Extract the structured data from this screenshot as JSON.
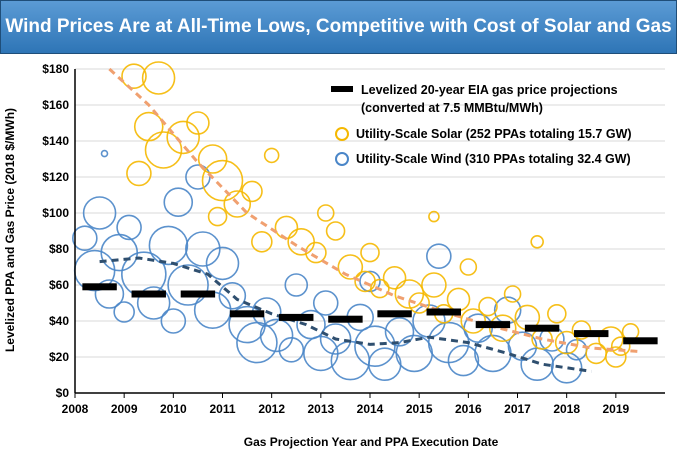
{
  "chart_data": {
    "type": "scatter",
    "title": "Wind Prices Are at All-Time Lows, Competitive with Cost of Solar and Gas",
    "xlabel": "Gas Projection Year and PPA Execution Date",
    "ylabel": "Levelized PPA and Gas Price (2018 $/MWh)",
    "xlim": [
      2008,
      2020
    ],
    "ylim": [
      0,
      180
    ],
    "x_ticks": [
      "2008",
      "2009",
      "2010",
      "2011",
      "2012",
      "2013",
      "2014",
      "2015",
      "2016",
      "2017",
      "2018",
      "2019"
    ],
    "y_ticks": [
      "$0",
      "$20",
      "$40",
      "$60",
      "$80",
      "$100",
      "$120",
      "$140",
      "$160",
      "$180"
    ],
    "legend": {
      "placement": "top-right",
      "gas_line1": "Levelized 20-year EIA gas price projections",
      "gas_line2": "(converted at 7.5 MMBtu/MWh)",
      "solar": "Utility-Scale Solar (252 PPAs totaling 15.7 GW)",
      "wind": "Utility-Scale Wind (310 PPAs totaling 32.4 GW)"
    },
    "colors": {
      "solar": "#f5b800",
      "wind": "#4a86c8",
      "solar_trend": "#f0a070",
      "wind_trend": "#2f4f6f",
      "gas": "#000000"
    },
    "gas_projections": [
      {
        "x": 2008.5,
        "y": 59
      },
      {
        "x": 2009.5,
        "y": 55
      },
      {
        "x": 2010.5,
        "y": 55
      },
      {
        "x": 2011.5,
        "y": 44
      },
      {
        "x": 2012.5,
        "y": 42
      },
      {
        "x": 2013.5,
        "y": 41
      },
      {
        "x": 2014.5,
        "y": 44
      },
      {
        "x": 2015.5,
        "y": 45
      },
      {
        "x": 2016.5,
        "y": 38
      },
      {
        "x": 2017.5,
        "y": 36
      },
      {
        "x": 2018.5,
        "y": 33
      },
      {
        "x": 2019.5,
        "y": 29
      }
    ],
    "solar_trend": [
      {
        "x": 2008.7,
        "y": 180
      },
      {
        "x": 2009.5,
        "y": 160
      },
      {
        "x": 2010.5,
        "y": 128
      },
      {
        "x": 2011.5,
        "y": 100
      },
      {
        "x": 2012.5,
        "y": 82
      },
      {
        "x": 2013.5,
        "y": 66
      },
      {
        "x": 2014.5,
        "y": 54
      },
      {
        "x": 2015.5,
        "y": 45
      },
      {
        "x": 2016.5,
        "y": 37
      },
      {
        "x": 2017.5,
        "y": 30
      },
      {
        "x": 2018.5,
        "y": 25
      },
      {
        "x": 2019.5,
        "y": 23
      }
    ],
    "wind_trend": [
      {
        "x": 2008.5,
        "y": 73
      },
      {
        "x": 2009.3,
        "y": 75
      },
      {
        "x": 2010.0,
        "y": 72
      },
      {
        "x": 2010.7,
        "y": 66
      },
      {
        "x": 2011.3,
        "y": 52
      },
      {
        "x": 2012.0,
        "y": 44
      },
      {
        "x": 2012.7,
        "y": 38
      },
      {
        "x": 2013.3,
        "y": 30
      },
      {
        "x": 2014.0,
        "y": 27
      },
      {
        "x": 2014.6,
        "y": 28
      },
      {
        "x": 2015.2,
        "y": 31
      },
      {
        "x": 2016.0,
        "y": 28
      },
      {
        "x": 2016.8,
        "y": 22
      },
      {
        "x": 2017.5,
        "y": 16
      },
      {
        "x": 2018.5,
        "y": 12
      }
    ],
    "solar_points": [
      {
        "x": 2009.7,
        "y": 175,
        "s": 16
      },
      {
        "x": 2009.2,
        "y": 176,
        "s": 12
      },
      {
        "x": 2009.5,
        "y": 148,
        "s": 14
      },
      {
        "x": 2009.8,
        "y": 135,
        "s": 18
      },
      {
        "x": 2009.3,
        "y": 122,
        "s": 12
      },
      {
        "x": 2010.2,
        "y": 142,
        "s": 16
      },
      {
        "x": 2010.5,
        "y": 150,
        "s": 11
      },
      {
        "x": 2010.8,
        "y": 130,
        "s": 14
      },
      {
        "x": 2011.0,
        "y": 118,
        "s": 20
      },
      {
        "x": 2011.3,
        "y": 105,
        "s": 13
      },
      {
        "x": 2011.6,
        "y": 112,
        "s": 10
      },
      {
        "x": 2010.9,
        "y": 98,
        "s": 9
      },
      {
        "x": 2012.3,
        "y": 92,
        "s": 11
      },
      {
        "x": 2012.6,
        "y": 84,
        "s": 13
      },
      {
        "x": 2012.9,
        "y": 78,
        "s": 10
      },
      {
        "x": 2013.3,
        "y": 90,
        "s": 9
      },
      {
        "x": 2013.6,
        "y": 70,
        "s": 12
      },
      {
        "x": 2013.9,
        "y": 62,
        "s": 10
      },
      {
        "x": 2014.2,
        "y": 58,
        "s": 9
      },
      {
        "x": 2014.5,
        "y": 64,
        "s": 11
      },
      {
        "x": 2014.8,
        "y": 55,
        "s": 14
      },
      {
        "x": 2015.0,
        "y": 50,
        "s": 10
      },
      {
        "x": 2015.3,
        "y": 60,
        "s": 12
      },
      {
        "x": 2015.5,
        "y": 44,
        "s": 9
      },
      {
        "x": 2015.8,
        "y": 52,
        "s": 11
      },
      {
        "x": 2016.1,
        "y": 40,
        "s": 12
      },
      {
        "x": 2016.4,
        "y": 48,
        "s": 9
      },
      {
        "x": 2016.7,
        "y": 36,
        "s": 13
      },
      {
        "x": 2016.9,
        "y": 55,
        "s": 8
      },
      {
        "x": 2017.2,
        "y": 42,
        "s": 12
      },
      {
        "x": 2017.4,
        "y": 84,
        "s": 6
      },
      {
        "x": 2017.5,
        "y": 30,
        "s": 10
      },
      {
        "x": 2017.8,
        "y": 44,
        "s": 9
      },
      {
        "x": 2018.0,
        "y": 28,
        "s": 11
      },
      {
        "x": 2018.3,
        "y": 35,
        "s": 9
      },
      {
        "x": 2018.6,
        "y": 22,
        "s": 10
      },
      {
        "x": 2018.9,
        "y": 30,
        "s": 12
      },
      {
        "x": 2019.1,
        "y": 26,
        "s": 9
      },
      {
        "x": 2019.3,
        "y": 34,
        "s": 8
      },
      {
        "x": 2019.0,
        "y": 20,
        "s": 10
      },
      {
        "x": 2012.0,
        "y": 132,
        "s": 7
      },
      {
        "x": 2015.3,
        "y": 98,
        "s": 5
      },
      {
        "x": 2013.1,
        "y": 100,
        "s": 8
      },
      {
        "x": 2014.0,
        "y": 78,
        "s": 9
      },
      {
        "x": 2011.8,
        "y": 84,
        "s": 10
      },
      {
        "x": 2016.0,
        "y": 70,
        "s": 8
      }
    ],
    "wind_points": [
      {
        "x": 2008.2,
        "y": 86,
        "s": 12
      },
      {
        "x": 2008.5,
        "y": 100,
        "s": 16
      },
      {
        "x": 2008.4,
        "y": 68,
        "s": 20
      },
      {
        "x": 2008.7,
        "y": 55,
        "s": 14
      },
      {
        "x": 2008.9,
        "y": 78,
        "s": 18
      },
      {
        "x": 2009.1,
        "y": 92,
        "s": 12
      },
      {
        "x": 2009.4,
        "y": 66,
        "s": 22
      },
      {
        "x": 2009.6,
        "y": 50,
        "s": 16
      },
      {
        "x": 2009.9,
        "y": 82,
        "s": 19
      },
      {
        "x": 2010.1,
        "y": 106,
        "s": 14
      },
      {
        "x": 2010.3,
        "y": 60,
        "s": 20
      },
      {
        "x": 2010.5,
        "y": 120,
        "s": 12
      },
      {
        "x": 2010.6,
        "y": 80,
        "s": 17
      },
      {
        "x": 2010.8,
        "y": 46,
        "s": 18
      },
      {
        "x": 2011.0,
        "y": 72,
        "s": 16
      },
      {
        "x": 2011.2,
        "y": 54,
        "s": 13
      },
      {
        "x": 2011.5,
        "y": 38,
        "s": 18
      },
      {
        "x": 2011.7,
        "y": 28,
        "s": 20
      },
      {
        "x": 2011.9,
        "y": 45,
        "s": 14
      },
      {
        "x": 2012.1,
        "y": 32,
        "s": 16
      },
      {
        "x": 2012.4,
        "y": 24,
        "s": 12
      },
      {
        "x": 2012.8,
        "y": 38,
        "s": 14
      },
      {
        "x": 2013.0,
        "y": 22,
        "s": 17
      },
      {
        "x": 2013.3,
        "y": 30,
        "s": 15
      },
      {
        "x": 2013.6,
        "y": 18,
        "s": 19
      },
      {
        "x": 2013.8,
        "y": 42,
        "s": 13
      },
      {
        "x": 2014.1,
        "y": 26,
        "s": 20
      },
      {
        "x": 2014.3,
        "y": 16,
        "s": 16
      },
      {
        "x": 2014.6,
        "y": 34,
        "s": 14
      },
      {
        "x": 2014.9,
        "y": 22,
        "s": 18
      },
      {
        "x": 2015.2,
        "y": 40,
        "s": 16
      },
      {
        "x": 2015.4,
        "y": 76,
        "s": 12
      },
      {
        "x": 2015.6,
        "y": 28,
        "s": 20
      },
      {
        "x": 2015.9,
        "y": 18,
        "s": 15
      },
      {
        "x": 2016.2,
        "y": 36,
        "s": 14
      },
      {
        "x": 2016.5,
        "y": 22,
        "s": 18
      },
      {
        "x": 2016.8,
        "y": 46,
        "s": 13
      },
      {
        "x": 2017.1,
        "y": 26,
        "s": 14
      },
      {
        "x": 2017.4,
        "y": 16,
        "s": 16
      },
      {
        "x": 2017.7,
        "y": 30,
        "s": 12
      },
      {
        "x": 2018.0,
        "y": 14,
        "s": 15
      },
      {
        "x": 2018.2,
        "y": 24,
        "s": 10
      },
      {
        "x": 2008.6,
        "y": 133,
        "s": 3
      },
      {
        "x": 2009.0,
        "y": 45,
        "s": 10
      },
      {
        "x": 2010.0,
        "y": 40,
        "s": 12
      },
      {
        "x": 2012.5,
        "y": 60,
        "s": 11
      },
      {
        "x": 2014.0,
        "y": 62,
        "s": 10
      },
      {
        "x": 2013.1,
        "y": 50,
        "s": 12
      }
    ]
  }
}
